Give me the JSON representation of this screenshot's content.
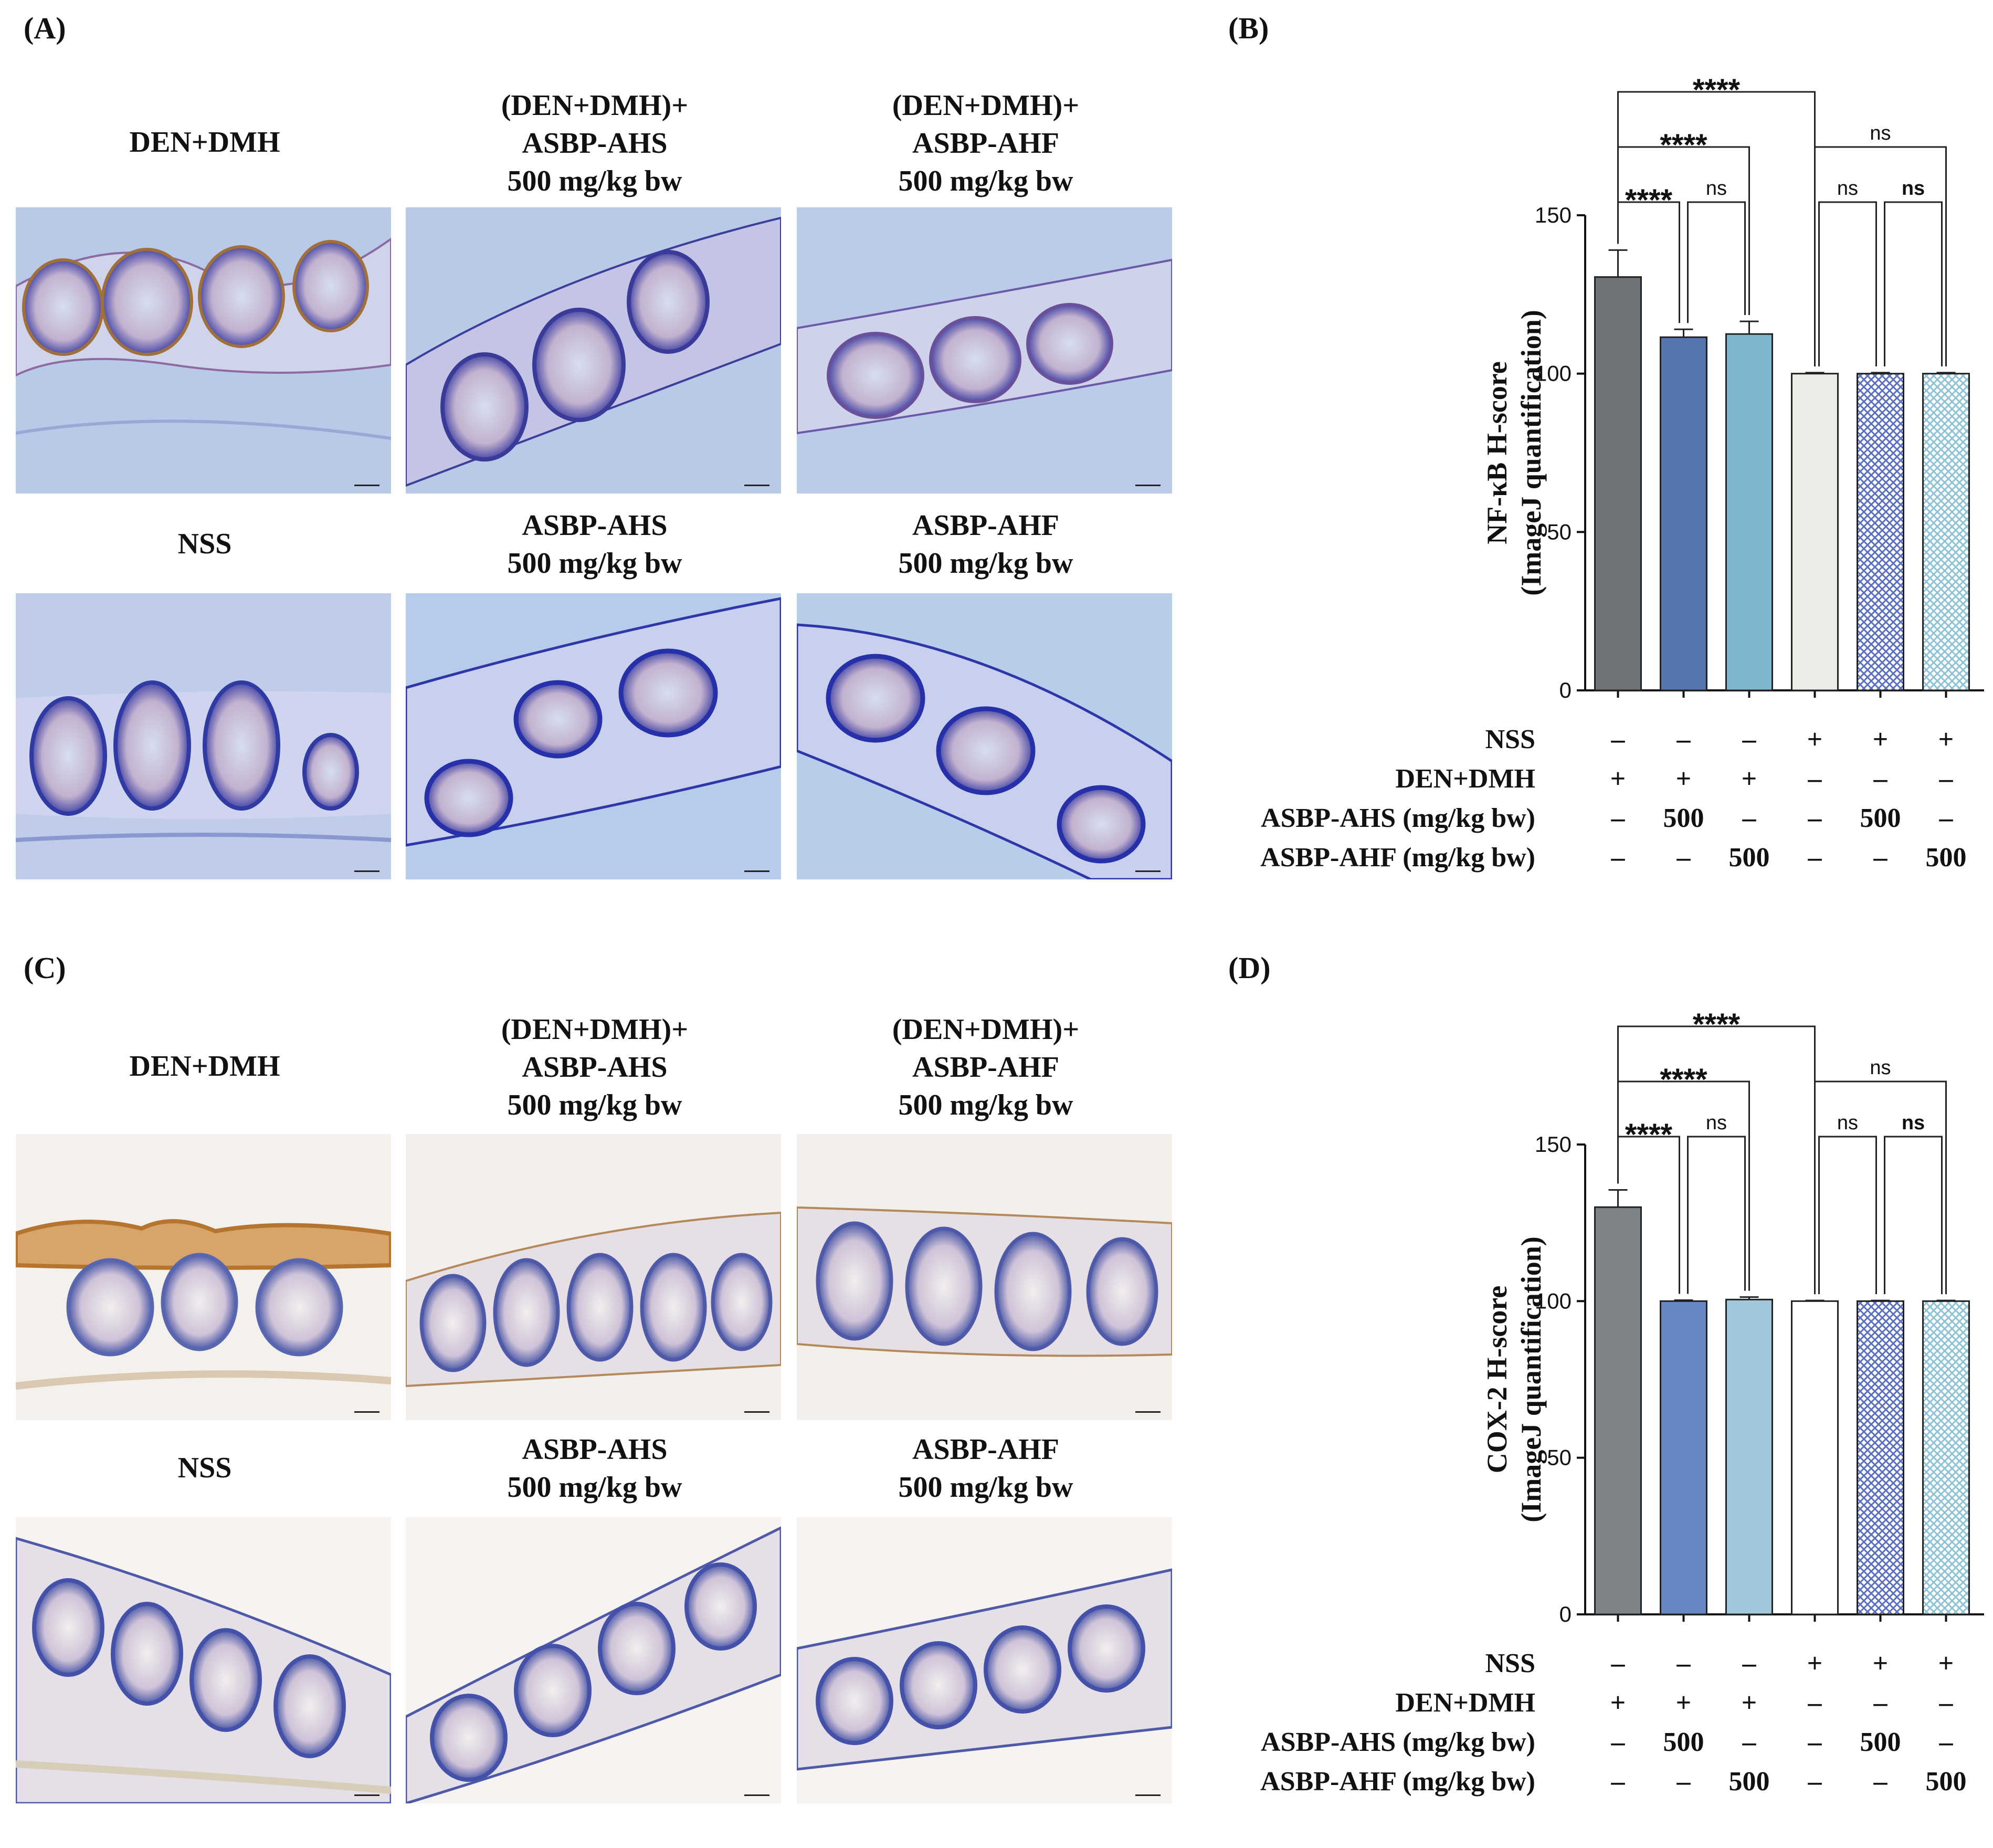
{
  "panels": {
    "A": "(A)",
    "B": "(B)",
    "C": "(C)",
    "D": "(D)"
  },
  "image_titles": {
    "den_dmh": "DEN+DMH",
    "den_dmh_ahs": "(DEN+DMH)+\nASBP-AHS\n500 mg/kg bw",
    "den_dmh_ahf": "(DEN+DMH)+\nASBP-AHF\n500 mg/kg bw",
    "nss": "NSS",
    "ahs": "ASBP-AHS\n500 mg/kg bw",
    "ahf": "ASBP-AHF\n500 mg/kg bw"
  },
  "colors": {
    "panelA_bg": "#b9c9e8",
    "panelC_bg": "#f3eee7",
    "stain_brown": "#b5752f",
    "stain_blue": "#3a44a8"
  },
  "treatment_table": {
    "rows": [
      {
        "label": "NSS",
        "values": [
          "–",
          "–",
          "–",
          "+",
          "+",
          "+"
        ]
      },
      {
        "label": "DEN+DMH",
        "values": [
          "+",
          "+",
          "+",
          "–",
          "–",
          "–"
        ]
      },
      {
        "label": "ASBP-AHS (mg/kg bw)",
        "values": [
          "–",
          "500",
          "–",
          "–",
          "500",
          "–"
        ]
      },
      {
        "label": "ASBP-AHF (mg/kg bw)",
        "values": [
          "–",
          "–",
          "500",
          "–",
          "–",
          "500"
        ]
      }
    ]
  },
  "chart_data": [
    {
      "type": "bar",
      "panel": "B",
      "ylabel_line1": "NF-κB H-score",
      "ylabel_line2": "(ImageJ quantification)",
      "ylim": [
        0,
        150
      ],
      "yticks": [
        "0",
        "50",
        "100",
        "150"
      ],
      "values": [
        130.5,
        111.5,
        112.5,
        100,
        100,
        100
      ],
      "errors": [
        8.5,
        2.5,
        4.0,
        0.3,
        0.3,
        0.3
      ],
      "bar_colors": [
        "#6e7377",
        "#5575b0",
        "#80b5cf",
        "#ecebe5",
        "#5b6fc0",
        "#8ec3d6"
      ],
      "bar_patterns": [
        false,
        false,
        false,
        false,
        true,
        true
      ],
      "significance": [
        {
          "from": 0,
          "to": 3,
          "level": 0,
          "label": "****",
          "style": "bold"
        },
        {
          "from": 0,
          "to": 2,
          "level": 1,
          "label": "****",
          "style": "bold"
        },
        {
          "from": 0,
          "to": 1,
          "level": 2,
          "label": "****",
          "style": "bold"
        },
        {
          "from": 1,
          "to": 2,
          "level": 2,
          "label": "ns",
          "style": "ns"
        },
        {
          "from": 3,
          "to": 5,
          "level": 1,
          "label": "ns",
          "style": "ns"
        },
        {
          "from": 3,
          "to": 4,
          "level": 2,
          "label": "ns",
          "style": "ns"
        },
        {
          "from": 4,
          "to": 5,
          "level": 2,
          "label": "ns",
          "style": "ns-bold"
        }
      ]
    },
    {
      "type": "bar",
      "panel": "D",
      "ylabel_line1": "COX-2 H-score",
      "ylabel_line2": "(ImageJ quantification)",
      "ylim": [
        0,
        150
      ],
      "yticks": [
        "0",
        "50",
        "100",
        "150"
      ],
      "values": [
        130,
        100,
        100.5,
        100,
        100,
        100
      ],
      "errors": [
        5.5,
        0.3,
        0.8,
        0.2,
        0.2,
        0.2
      ],
      "bar_colors": [
        "#7d8287",
        "#6486c2",
        "#9fc8da",
        "#ffffff",
        "#5b6fc0",
        "#8ec3d6"
      ],
      "bar_patterns": [
        false,
        false,
        false,
        false,
        true,
        true
      ],
      "significance": [
        {
          "from": 0,
          "to": 3,
          "level": 0,
          "label": "****",
          "style": "bold"
        },
        {
          "from": 0,
          "to": 2,
          "level": 1,
          "label": "****",
          "style": "bold"
        },
        {
          "from": 0,
          "to": 1,
          "level": 2,
          "label": "****",
          "style": "bold"
        },
        {
          "from": 1,
          "to": 2,
          "level": 2,
          "label": "ns",
          "style": "ns"
        },
        {
          "from": 3,
          "to": 5,
          "level": 1,
          "label": "ns",
          "style": "ns"
        },
        {
          "from": 3,
          "to": 4,
          "level": 2,
          "label": "ns",
          "style": "ns"
        },
        {
          "from": 4,
          "to": 5,
          "level": 2,
          "label": "ns",
          "style": "ns-bold"
        }
      ]
    }
  ]
}
